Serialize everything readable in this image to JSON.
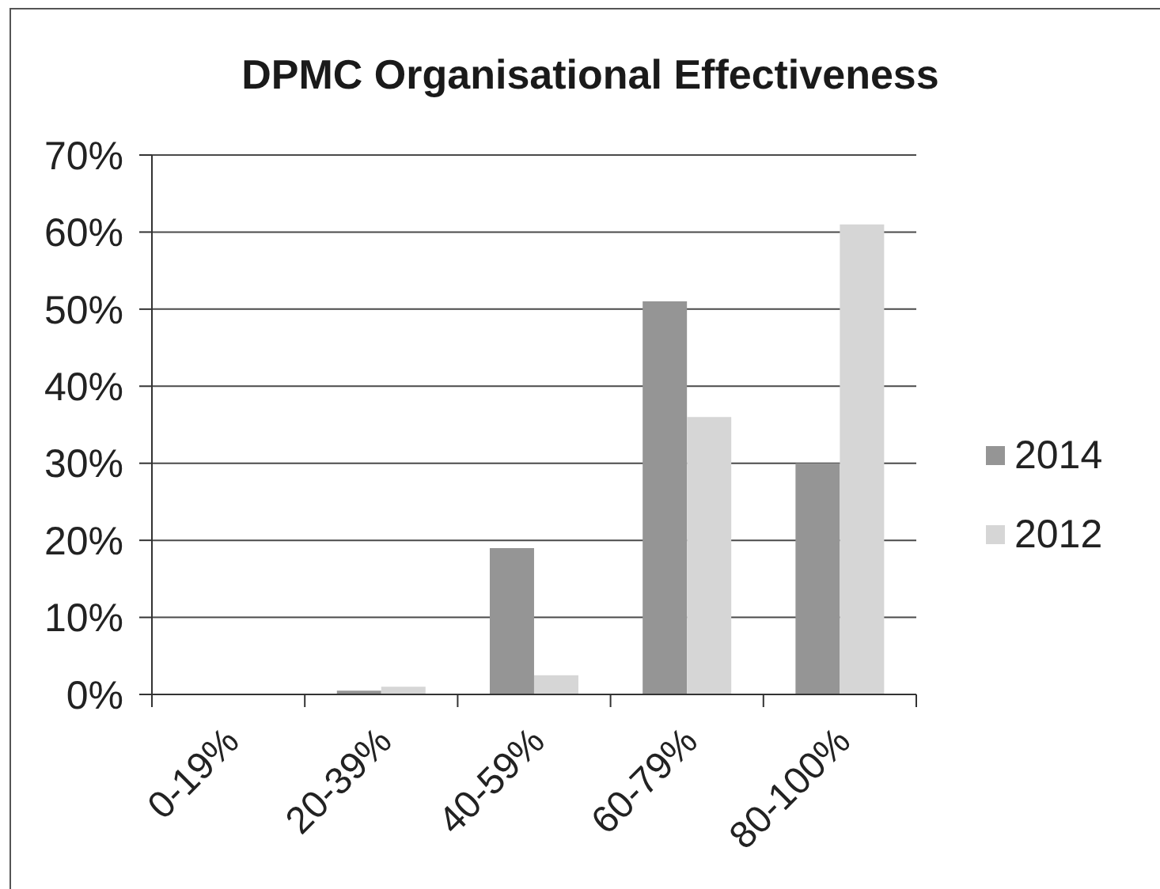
{
  "chart_data": {
    "type": "bar",
    "title": "DPMC Organisational Effectiveness",
    "categories": [
      "0-19%",
      "20-39%",
      "40-59%",
      "60-79%",
      "80-100%"
    ],
    "series": [
      {
        "name": "2014",
        "color": "#959595",
        "values": [
          0,
          0.5,
          19,
          51,
          30
        ]
      },
      {
        "name": "2012",
        "color": "#d6d6d6",
        "values": [
          0,
          1,
          2.5,
          36,
          61
        ]
      }
    ],
    "ylim": [
      0,
      70
    ],
    "yticks": [
      {
        "value": 0,
        "label": "0%"
      },
      {
        "value": 10,
        "label": "10%"
      },
      {
        "value": 20,
        "label": "20%"
      },
      {
        "value": 30,
        "label": "30%"
      },
      {
        "value": 40,
        "label": "40%"
      },
      {
        "value": 50,
        "label": "50%"
      },
      {
        "value": 60,
        "label": "60%"
      },
      {
        "value": 70,
        "label": "70%"
      }
    ],
    "grid": "y",
    "legend": "right"
  }
}
